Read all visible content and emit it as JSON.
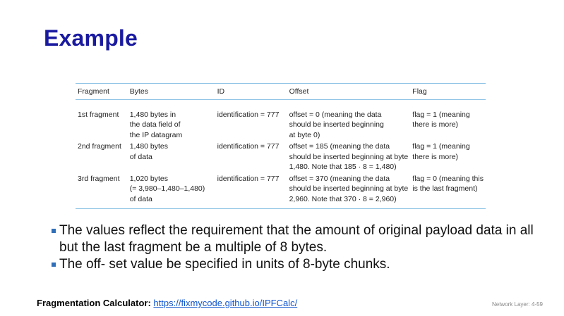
{
  "slide": {
    "title": "Example",
    "table": {
      "headers": [
        "Fragment",
        "Bytes",
        "ID",
        "Offset",
        "Flag"
      ],
      "rows": [
        {
          "fragment": [
            "1st fragment"
          ],
          "bytes": [
            "1,480 bytes in",
            "the data field of",
            "the IP datagram"
          ],
          "id": [
            "identification = 777"
          ],
          "offset": [
            "offset = 0 (meaning the data",
            "should be inserted beginning",
            "at byte 0)"
          ],
          "flag": [
            "flag = 1 (meaning",
            "there is more)"
          ]
        },
        {
          "fragment": [
            "2nd fragment"
          ],
          "bytes": [
            "1,480 bytes",
            "of data"
          ],
          "id": [
            "identification = 777"
          ],
          "offset": [
            "offset = 185 (meaning the data",
            "should be inserted beginning at byte",
            "1,480. Note that 185 · 8 = 1,480)"
          ],
          "flag": [
            "flag = 1 (meaning",
            "there is more)"
          ]
        },
        {
          "fragment": [
            "3rd fragment"
          ],
          "bytes": [
            "1,020 bytes",
            "(= 3,980–1,480–1,480)",
            "of data"
          ],
          "id": [
            "identification = 777"
          ],
          "offset": [
            "offset = 370 (meaning the data",
            "should be inserted beginning at byte",
            "2,960. Note that 370 · 8 = 2,960)"
          ],
          "flag": [
            "flag = 0 (meaning this",
            "is the last fragment)"
          ]
        }
      ]
    },
    "bullets": [
      "The values reflect the requirement that the amount of original payload data in all but the last fragment be a multiple of 8 bytes.",
      "The off- set value be specified in units of 8-byte chunks."
    ],
    "footer": {
      "label": "Fragmentation Calculator:",
      "link_text": "https://fixmycode.github.io/IPFCalc/"
    },
    "page_number": "Network Layer: 4-59"
  },
  "colors": {
    "title": "#1a1aa0",
    "table_rule": "#8fc4e6",
    "bullet_marker": "#2f6fb8",
    "link": "#1155cc"
  }
}
